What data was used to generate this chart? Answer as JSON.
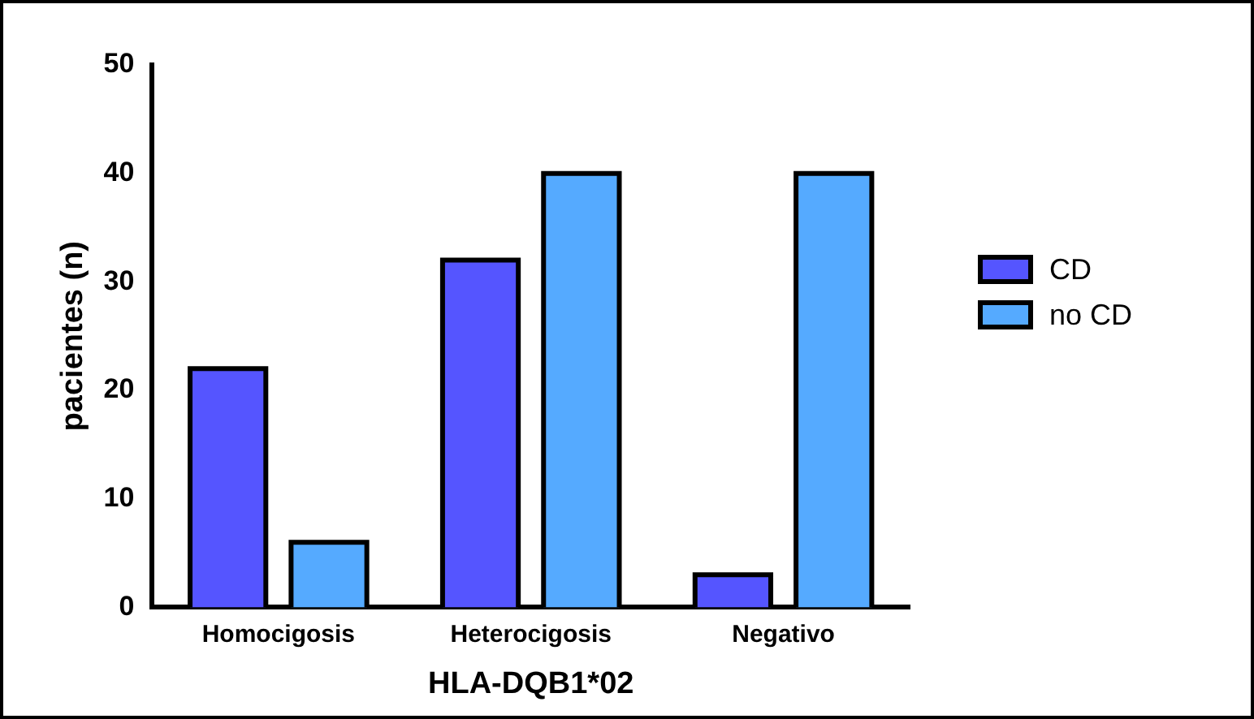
{
  "chart_data": {
    "type": "bar",
    "xlabel": "HLA-DQB1*02",
    "ylabel": "pacientes (n)",
    "categories": [
      "Homocigosis",
      "Heterocigosis",
      "Negativo"
    ],
    "series": [
      {
        "name": "CD",
        "color": "#5555ff",
        "values": [
          22,
          32,
          3
        ]
      },
      {
        "name": "no CD",
        "color": "#55aaff",
        "values": [
          6,
          40,
          40
        ]
      }
    ],
    "ylim": [
      0,
      50
    ],
    "yticks": [
      0,
      10,
      20,
      30,
      40,
      50
    ],
    "grid": false,
    "legend": "right"
  }
}
